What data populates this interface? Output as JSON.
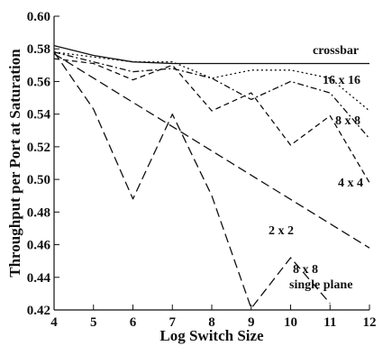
{
  "chart_data": {
    "type": "line",
    "xlabel": "Log Switch Size",
    "ylabel": "Throughput per Port at Saturation",
    "xlim": [
      4,
      12
    ],
    "ylim": [
      0.42,
      0.6
    ],
    "x_ticks": [
      "4",
      "5",
      "6",
      "7",
      "8",
      "9",
      "10",
      "11",
      "12"
    ],
    "y_ticks": [
      "0.42",
      "0.44",
      "0.46",
      "0.48",
      "0.50",
      "0.52",
      "0.54",
      "0.56",
      "0.58",
      "0.60"
    ],
    "grid": false,
    "legend": "none (series labeled inline)",
    "series": [
      {
        "name": "crossbar",
        "style": "solid",
        "x": [
          4,
          5,
          6,
          7,
          8,
          9,
          10,
          11,
          12
        ],
        "y": [
          0.582,
          0.576,
          0.572,
          0.571,
          0.571,
          0.571,
          0.571,
          0.571,
          0.571
        ]
      },
      {
        "name": "16 x 16",
        "style": "dotted",
        "x": [
          4,
          5,
          6,
          7,
          8,
          9,
          10,
          11,
          12
        ],
        "y": [
          0.578,
          0.575,
          0.572,
          0.572,
          0.562,
          0.567,
          0.567,
          0.562,
          0.542
        ]
      },
      {
        "name": "8 x 8",
        "style": "dashdot",
        "x": [
          4,
          5,
          6,
          7,
          8,
          9,
          10,
          11,
          12
        ],
        "y": [
          0.578,
          0.572,
          0.566,
          0.568,
          0.562,
          0.549,
          0.56,
          0.553,
          0.525
        ]
      },
      {
        "name": "4 x 4",
        "style": "dashed",
        "x": [
          4,
          5,
          6,
          7,
          8,
          9,
          10,
          11,
          12
        ],
        "y": [
          0.574,
          0.571,
          0.561,
          0.57,
          0.542,
          0.553,
          0.521,
          0.539,
          0.498
        ]
      },
      {
        "name": "2 x 2",
        "style": "longdash",
        "x": [
          4,
          12
        ],
        "y": [
          0.577,
          0.458
        ]
      },
      {
        "name": "8 x 8 single plane",
        "style": "longdash",
        "x": [
          4,
          5,
          6,
          7,
          8,
          9,
          10,
          11
        ],
        "y": [
          0.578,
          0.543,
          0.488,
          0.54,
          0.49,
          0.421,
          0.452,
          0.424
        ]
      }
    ],
    "labels": {
      "crossbar": "crossbar",
      "s16": "16 x 16",
      "s8": "8 x 8",
      "s4": "4 x 4",
      "s2": "2 x 2",
      "single_l1": "8 x 8",
      "single_l2": "single plane"
    }
  }
}
